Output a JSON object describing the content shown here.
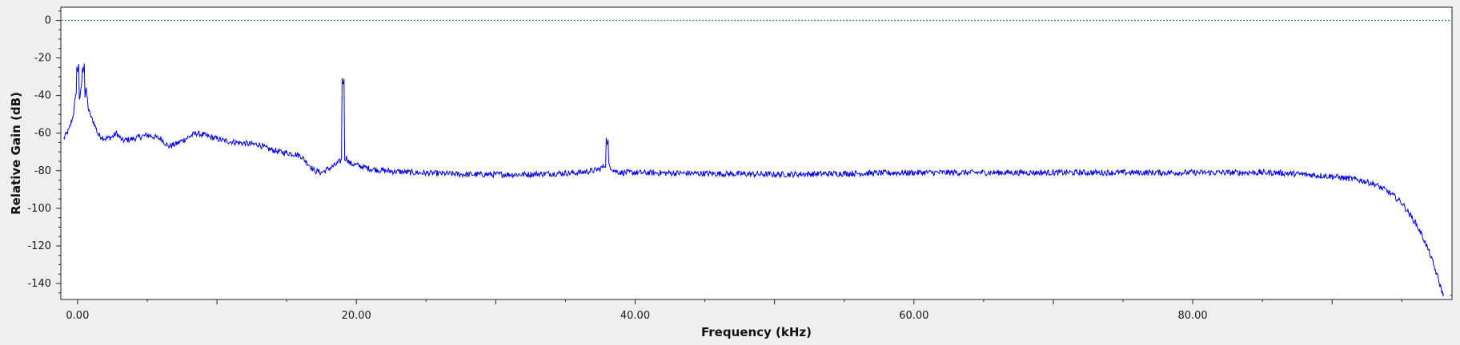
{
  "colors": {
    "background": "#efefef",
    "plot_area": "#ffffff",
    "trace": "#0000ee",
    "reference_line": "#008b8b",
    "axis": "#222222"
  },
  "chart_data": {
    "type": "line",
    "title": "",
    "xlabel": "Frequency (kHz)",
    "ylabel": "Relative Gain (dB)",
    "xlim": [
      -1.2,
      98.6
    ],
    "ylim": [
      -148.5,
      7
    ],
    "grid": false,
    "legend": "none",
    "x_ticks": [
      {
        "value": 0,
        "label": "0.00"
      },
      {
        "value": 20,
        "label": "20.00"
      },
      {
        "value": 40,
        "label": "40.00"
      },
      {
        "value": 60,
        "label": "60.00"
      },
      {
        "value": 80,
        "label": "80.00"
      }
    ],
    "x_minor_step": 5,
    "y_ticks": [
      {
        "value": 0,
        "label": "0"
      },
      {
        "value": -20,
        "label": "-20"
      },
      {
        "value": -40,
        "label": "-40"
      },
      {
        "value": -60,
        "label": "-60"
      },
      {
        "value": -80,
        "label": "-80"
      },
      {
        "value": -100,
        "label": "-100"
      },
      {
        "value": -120,
        "label": "-120"
      },
      {
        "value": -140,
        "label": "-140"
      }
    ],
    "y_minor_step": 5,
    "reference_line": {
      "y": 0,
      "style": "dotted"
    },
    "series": [
      {
        "values_xy": [
          [
            -1.0,
            -63
          ],
          [
            -0.6,
            -58
          ],
          [
            -0.3,
            -50
          ],
          [
            -0.1,
            -38
          ],
          [
            0.0,
            -30
          ],
          [
            0.15,
            -44
          ],
          [
            0.3,
            -32
          ],
          [
            0.45,
            -46
          ],
          [
            0.6,
            -36
          ],
          [
            0.8,
            -48
          ],
          [
            1.0,
            -52
          ],
          [
            1.2,
            -55
          ],
          [
            1.5,
            -61
          ],
          [
            2.0,
            -63
          ],
          [
            2.5,
            -62
          ],
          [
            2.8,
            -60
          ],
          [
            3.2,
            -64
          ],
          [
            4.0,
            -63
          ],
          [
            5.0,
            -61
          ],
          [
            6.0,
            -63
          ],
          [
            6.5,
            -67
          ],
          [
            7.0,
            -66
          ],
          [
            7.5,
            -64
          ],
          [
            8.0,
            -62
          ],
          [
            8.5,
            -60
          ],
          [
            9.5,
            -62
          ],
          [
            10.5,
            -64
          ],
          [
            11.5,
            -65
          ],
          [
            12.5,
            -66
          ],
          [
            13.0,
            -66
          ],
          [
            13.5,
            -68
          ],
          [
            14.5,
            -70
          ],
          [
            15.5,
            -71
          ],
          [
            16.0,
            -72
          ],
          [
            16.5,
            -76
          ],
          [
            17.0,
            -80
          ],
          [
            17.5,
            -81
          ],
          [
            18.0,
            -79
          ],
          [
            18.5,
            -77
          ],
          [
            19.0,
            -74
          ],
          [
            19.3,
            -73
          ],
          [
            19.5,
            -76
          ],
          [
            20.0,
            -77
          ],
          [
            21.0,
            -79
          ],
          [
            22.0,
            -80
          ],
          [
            24.0,
            -81
          ],
          [
            28.0,
            -82
          ],
          [
            32.0,
            -82
          ],
          [
            36.0,
            -81
          ],
          [
            37.0,
            -80
          ],
          [
            37.5,
            -79
          ],
          [
            38.0,
            -76
          ],
          [
            38.5,
            -80
          ],
          [
            39.0,
            -81
          ],
          [
            40.0,
            -81
          ],
          [
            50.0,
            -82
          ],
          [
            60.0,
            -81
          ],
          [
            70.0,
            -81
          ],
          [
            80.0,
            -81
          ],
          [
            86.0,
            -81
          ],
          [
            88.0,
            -82
          ],
          [
            90.0,
            -83
          ],
          [
            92.0,
            -85
          ],
          [
            93.0,
            -87
          ],
          [
            94.0,
            -91
          ],
          [
            95.0,
            -97
          ],
          [
            96.0,
            -108
          ],
          [
            96.5,
            -115
          ],
          [
            97.0,
            -124
          ],
          [
            97.5,
            -135
          ],
          [
            98.0,
            -147
          ]
        ],
        "spikes": [
          {
            "x": 0.0,
            "y": -28
          },
          {
            "x": 0.4,
            "y": -28
          },
          {
            "x": 19.05,
            "y": -35
          },
          {
            "x": 38.0,
            "y": -67
          }
        ],
        "tail_points": [
          [
            98.5,
            -146
          ],
          [
            98.6,
            -146.5
          ]
        ]
      }
    ]
  }
}
